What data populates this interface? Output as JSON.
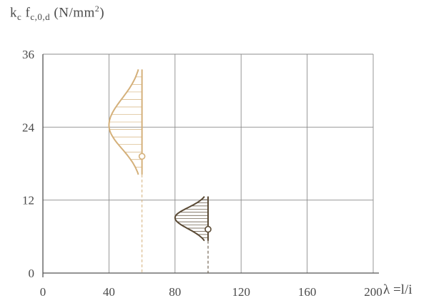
{
  "chart_data": {
    "type": "scatter",
    "ylabel": {
      "k": "k",
      "k_sub": "c",
      "f": "f",
      "f_sub": "c,0,d",
      "unit_pre": "(N/mm",
      "unit_sup": "2",
      "unit_post": ")"
    },
    "xlabel": "λ =l/i",
    "xlim": [
      0,
      200
    ],
    "ylim": [
      0,
      36
    ],
    "x_ticks": [
      0,
      40,
      80,
      120,
      160,
      200
    ],
    "y_ticks": [
      0,
      12,
      24,
      36
    ],
    "x_tick_labels": [
      "0",
      "40",
      "80",
      "120",
      "160",
      "200"
    ],
    "y_tick_labels": [
      "0",
      "12",
      "24",
      "36"
    ],
    "grid": true,
    "series": [
      {
        "color": "#d4b07a",
        "point": {
          "x": 60,
          "y": 19.2
        },
        "distribution": {
          "x_base": 60,
          "y_min": 16.2,
          "y_max": 33.5,
          "y_peak": 24.3,
          "x_min": 40
        }
      },
      {
        "color": "#5a4a35",
        "point": {
          "x": 100,
          "y": 7.2
        },
        "distribution": {
          "x_base": 100,
          "y_min": 5.3,
          "y_max": 12.6,
          "y_peak": 9.1,
          "x_min": 80
        }
      }
    ]
  }
}
